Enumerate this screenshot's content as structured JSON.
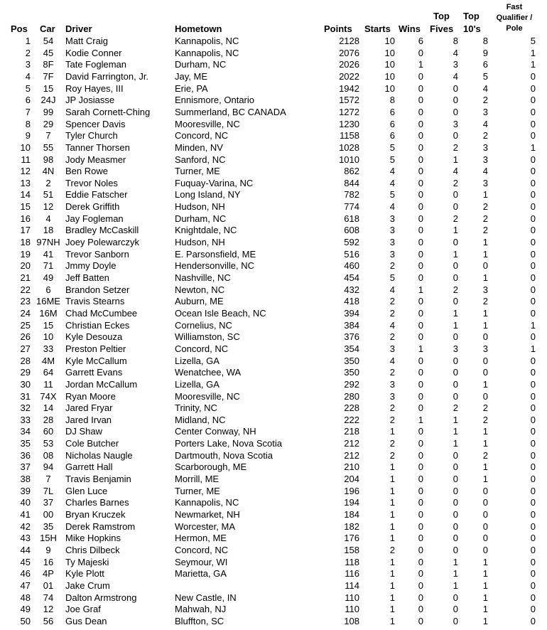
{
  "headers": {
    "pos": "Pos",
    "car": "Car",
    "driver": "Driver",
    "hometown": "Hometown",
    "points": "Points",
    "starts": "Starts",
    "wins": "Wins",
    "top_fives_1": "Top",
    "top_fives_2": "Fives",
    "top_tens_1": "Top",
    "top_tens_2": "10's",
    "fast_1": "Fast",
    "fast_2": "Qualifier /",
    "fast_3": "Pole"
  },
  "rows": [
    [
      "1",
      "54",
      "Matt Craig",
      "Kannapolis, NC",
      "2128",
      "10",
      "6",
      "8",
      "8",
      "5"
    ],
    [
      "2",
      "45",
      "Kodie Conner",
      "Kannapolis, NC",
      "2076",
      "10",
      "0",
      "4",
      "9",
      "1"
    ],
    [
      "3",
      "8F",
      "Tate Fogleman",
      "Durham, NC",
      "2026",
      "10",
      "1",
      "3",
      "6",
      "1"
    ],
    [
      "4",
      "7F",
      "David Farrington, Jr.",
      "Jay, ME",
      "2022",
      "10",
      "0",
      "4",
      "5",
      "0"
    ],
    [
      "5",
      "15",
      "Roy Hayes, III",
      "Erie, PA",
      "1942",
      "10",
      "0",
      "0",
      "4",
      "0"
    ],
    [
      "6",
      "24J",
      "JP Josiasse",
      "Ennismore, Ontario",
      "1572",
      "8",
      "0",
      "0",
      "2",
      "0"
    ],
    [
      "7",
      "99",
      "Sarah Cornett-Ching",
      "Summerland, BC  CANADA",
      "1272",
      "6",
      "0",
      "0",
      "3",
      "0"
    ],
    [
      "8",
      "29",
      "Spencer Davis",
      "Mooresville, NC",
      "1230",
      "6",
      "0",
      "3",
      "4",
      "0"
    ],
    [
      "9",
      "7",
      "Tyler Church",
      "Concord, NC",
      "1158",
      "6",
      "0",
      "0",
      "2",
      "0"
    ],
    [
      "10",
      "55",
      "Tanner Thorsen",
      "Minden, NV",
      "1028",
      "5",
      "0",
      "2",
      "3",
      "1"
    ],
    [
      "11",
      "98",
      "Jody Measmer",
      "Sanford, NC",
      "1010",
      "5",
      "0",
      "1",
      "3",
      "0"
    ],
    [
      "12",
      "4N",
      "Ben Rowe",
      "Turner, ME",
      "862",
      "4",
      "0",
      "4",
      "4",
      "0"
    ],
    [
      "13",
      "2",
      "Trevor Noles",
      "Fuquay-Varina, NC",
      "844",
      "4",
      "0",
      "2",
      "3",
      "0"
    ],
    [
      "14",
      "51",
      "Eddie Fatscher",
      "Long Island, NY",
      "782",
      "5",
      "0",
      "0",
      "1",
      "0"
    ],
    [
      "15",
      "12",
      "Derek Griffith",
      "Hudson, NH",
      "774",
      "4",
      "0",
      "0",
      "2",
      "0"
    ],
    [
      "16",
      "4",
      "Jay Fogleman",
      "Durham, NC",
      "618",
      "3",
      "0",
      "2",
      "2",
      "0"
    ],
    [
      "17",
      "18",
      "Bradley McCaskill",
      "Knightdale, NC",
      "608",
      "3",
      "0",
      "1",
      "2",
      "0"
    ],
    [
      "18",
      "97NH",
      "Joey Polewarczyk",
      "Hudson, NH",
      "592",
      "3",
      "0",
      "0",
      "1",
      "0"
    ],
    [
      "19",
      "41",
      "Trevor Sanborn",
      "E. Parsonsfield, ME",
      "516",
      "3",
      "0",
      "1",
      "1",
      "0"
    ],
    [
      "20",
      "71",
      "Jmmy Doyle",
      "Hendersonville, NC",
      "460",
      "2",
      "0",
      "0",
      "0",
      "0"
    ],
    [
      "21",
      "49",
      "Jeff Batten",
      "Nashville, NC",
      "454",
      "5",
      "0",
      "0",
      "1",
      "0"
    ],
    [
      "22",
      "6",
      "Brandon Setzer",
      "Newton, NC",
      "432",
      "4",
      "1",
      "2",
      "3",
      "0"
    ],
    [
      "23",
      "16ME",
      "Travis Stearns",
      "Auburn, ME",
      "418",
      "2",
      "0",
      "0",
      "2",
      "0"
    ],
    [
      "24",
      "16M",
      "Chad McCumbee",
      "Ocean Isle Beach, NC",
      "394",
      "2",
      "0",
      "1",
      "1",
      "0"
    ],
    [
      "25",
      "15",
      "Christian Eckes",
      "Cornelius, NC",
      "384",
      "4",
      "0",
      "1",
      "1",
      "1"
    ],
    [
      "26",
      "10",
      "Kyle Desouza",
      "Williamston, SC",
      "376",
      "2",
      "0",
      "0",
      "0",
      "0"
    ],
    [
      "27",
      "33",
      "Preston Peltier",
      "Concord, NC",
      "354",
      "3",
      "1",
      "3",
      "3",
      "1"
    ],
    [
      "28",
      "4M",
      "Kyle McCallum",
      "Lizella, GA",
      "350",
      "4",
      "0",
      "0",
      "0",
      "0"
    ],
    [
      "29",
      "64",
      "Garrett Evans",
      "Wenatchee, WA",
      "350",
      "2",
      "0",
      "0",
      "0",
      "0"
    ],
    [
      "30",
      "11",
      "Jordan McCallum",
      "Lizella, GA",
      "292",
      "3",
      "0",
      "0",
      "1",
      "0"
    ],
    [
      "31",
      "74X",
      "Ryan Moore",
      "Mooresville, NC",
      "280",
      "3",
      "0",
      "0",
      "0",
      "0"
    ],
    [
      "32",
      "14",
      "Jared Fryar",
      "Trinity, NC",
      "228",
      "2",
      "0",
      "2",
      "2",
      "0"
    ],
    [
      "33",
      "28",
      "Jared Irvan",
      "Midland, NC",
      "222",
      "2",
      "1",
      "1",
      "2",
      "0"
    ],
    [
      "34",
      "60",
      "DJ Shaw",
      "Center Conway, NH",
      "218",
      "1",
      "0",
      "1",
      "1",
      "0"
    ],
    [
      "35",
      "53",
      "Cole Butcher",
      "Porters Lake, Nova Scotia",
      "212",
      "2",
      "0",
      "1",
      "1",
      "0"
    ],
    [
      "36",
      "08",
      "Nicholas Naugle",
      "Dartmouth, Nova Scotia",
      "212",
      "2",
      "0",
      "0",
      "2",
      "0"
    ],
    [
      "37",
      "94",
      "Garrett Hall",
      "Scarborough, ME",
      "210",
      "1",
      "0",
      "0",
      "1",
      "0"
    ],
    [
      "38",
      "7",
      "Travis Benjamin",
      "Morrill, ME",
      "204",
      "1",
      "0",
      "0",
      "1",
      "0"
    ],
    [
      "39",
      "7L",
      "Glen Luce",
      "Turner, ME",
      "196",
      "1",
      "0",
      "0",
      "0",
      "0"
    ],
    [
      "40",
      "37",
      "Charles Barnes",
      "Kannapolis, NC",
      "194",
      "1",
      "0",
      "0",
      "0",
      "0"
    ],
    [
      "41",
      "00",
      "Bryan Kruczek",
      "Newmarket, NH",
      "184",
      "1",
      "0",
      "0",
      "0",
      "0"
    ],
    [
      "42",
      "35",
      "Derek Ramstrom",
      "Worcester, MA",
      "182",
      "1",
      "0",
      "0",
      "0",
      "0"
    ],
    [
      "43",
      "15H",
      "Mike Hopkins",
      "Hermon, ME",
      "176",
      "1",
      "0",
      "0",
      "0",
      "0"
    ],
    [
      "44",
      "9",
      "Chris Dilbeck",
      "Concord, NC",
      "158",
      "2",
      "0",
      "0",
      "0",
      "0"
    ],
    [
      "45",
      "16",
      "Ty Majeski",
      "Seymour, WI",
      "118",
      "1",
      "0",
      "1",
      "1",
      "0"
    ],
    [
      "46",
      "4P",
      "Kyle Plott",
      "Marietta, GA",
      "116",
      "1",
      "0",
      "1",
      "1",
      "0"
    ],
    [
      "47",
      "01",
      "Jake Crum",
      "",
      "114",
      "1",
      "0",
      "1",
      "1",
      "0"
    ],
    [
      "48",
      "74",
      "Dalton Armstrong",
      "New Castle, IN",
      "110",
      "1",
      "0",
      "0",
      "1",
      "0"
    ],
    [
      "49",
      "12",
      "Joe Graf",
      "Mahwah, NJ",
      "110",
      "1",
      "0",
      "0",
      "1",
      "0"
    ],
    [
      "50",
      "56",
      "Gus Dean",
      "Bluffton, SC",
      "108",
      "1",
      "0",
      "0",
      "1",
      "0"
    ]
  ]
}
